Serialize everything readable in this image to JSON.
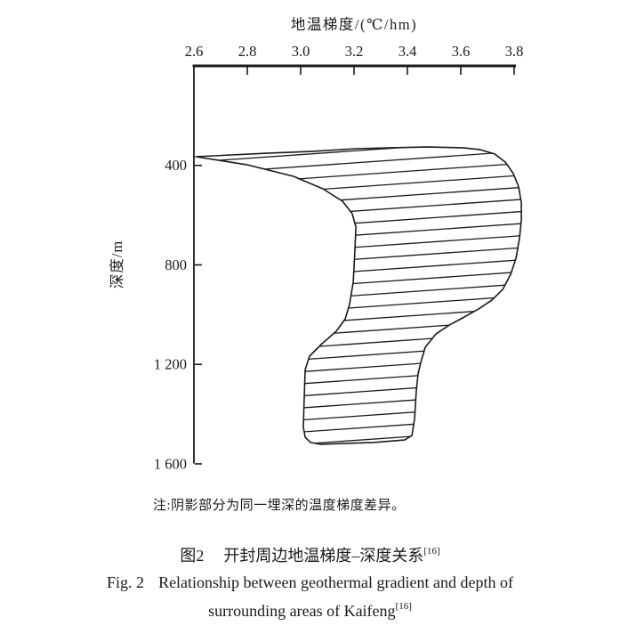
{
  "figure": {
    "note": "注:阴影部分为同一埋深的温度梯度差异。",
    "caption_zh": {
      "fig_no": "图2",
      "title": "开封周边地温梯度–深度关系",
      "ref_sup": "[16]"
    },
    "caption_en": {
      "fig_no": "Fig. 2",
      "line1": "Relationship between geothermal gradient and depth of",
      "line2": "surrounding areas of Kaifeng",
      "ref_sup": "[16]"
    }
  },
  "colors": {
    "ink": "#1a1a1a",
    "background": "#ffffff"
  },
  "chart_data": {
    "type": "area",
    "title": "开封周边地温梯度–深度关系 (Kaifeng geothermal gradient vs depth)",
    "xlabel": "地温梯度/(℃/hm)",
    "ylabel": "深度/m",
    "x_axis": {
      "position": "top",
      "range": [
        2.6,
        3.8
      ],
      "tick_values": [
        2.6,
        2.8,
        3.0,
        3.2,
        3.4,
        3.6,
        3.8
      ],
      "tick_labels": [
        "2.6",
        "2.8",
        "3.0",
        "3.2",
        "3.4",
        "3.6",
        "3.8"
      ]
    },
    "y_axis": {
      "position": "left",
      "range": [
        0,
        1600
      ],
      "direction": "downward",
      "tick_values": [
        400,
        800,
        1200,
        1600
      ],
      "tick_labels": [
        "400",
        "800",
        "1 200",
        "1 600"
      ]
    },
    "grid": false,
    "legend": false,
    "annotation": "阴影(剖面线)部分为同一埋深的温度梯度差异",
    "series": [
      {
        "name": "max_gradient_boundary",
        "comment": "upper/right envelope, [gradient ℃/hm, depth m], apex to bottom-right",
        "points": [
          [
            2.607,
            365
          ],
          [
            2.74,
            358
          ],
          [
            2.873,
            351
          ],
          [
            3.04,
            344
          ],
          [
            3.207,
            333
          ],
          [
            3.34,
            329
          ],
          [
            3.473,
            326
          ],
          [
            3.607,
            329
          ],
          [
            3.673,
            337
          ],
          [
            3.727,
            354
          ],
          [
            3.767,
            387
          ],
          [
            3.797,
            433
          ],
          [
            3.817,
            487
          ],
          [
            3.827,
            551
          ],
          [
            3.827,
            619
          ],
          [
            3.82,
            694
          ],
          [
            3.807,
            773
          ],
          [
            3.787,
            838
          ],
          [
            3.757,
            899
          ],
          [
            3.717,
            941
          ],
          [
            3.667,
            977
          ],
          [
            3.607,
            1013
          ],
          [
            3.557,
            1042
          ],
          [
            3.507,
            1078
          ],
          [
            3.467,
            1131
          ],
          [
            3.45,
            1192
          ],
          [
            3.44,
            1239
          ],
          [
            3.433,
            1310
          ],
          [
            3.427,
            1418
          ],
          [
            3.417,
            1486
          ]
        ]
      },
      {
        "name": "bottom_edge",
        "comment": "closing edge at maximum depth ~1500 m",
        "points": [
          [
            3.39,
            1504
          ],
          [
            3.273,
            1514
          ],
          [
            3.073,
            1521
          ],
          [
            3.037,
            1514
          ],
          [
            3.017,
            1493
          ]
        ]
      },
      {
        "name": "min_gradient_boundary",
        "comment": "lower/left envelope, [gradient ℃/hm, depth m], apex to bottom-left",
        "points": [
          [
            2.607,
            365
          ],
          [
            2.797,
            397
          ],
          [
            2.973,
            444
          ],
          [
            3.083,
            494
          ],
          [
            3.157,
            544
          ],
          [
            3.193,
            594
          ],
          [
            3.207,
            648
          ],
          [
            3.203,
            748
          ],
          [
            3.197,
            870
          ],
          [
            3.183,
            959
          ],
          [
            3.167,
            1017
          ],
          [
            3.133,
            1067
          ],
          [
            3.08,
            1117
          ],
          [
            3.033,
            1167
          ],
          [
            3.017,
            1221
          ],
          [
            3.013,
            1346
          ],
          [
            3.01,
            1453
          ]
        ]
      }
    ],
    "hatching": {
      "style": "near-horizontal lines rising slightly to the right, clipped to band",
      "slope_dy_per_dx": -0.07,
      "spacing_px": 13.55
    }
  }
}
